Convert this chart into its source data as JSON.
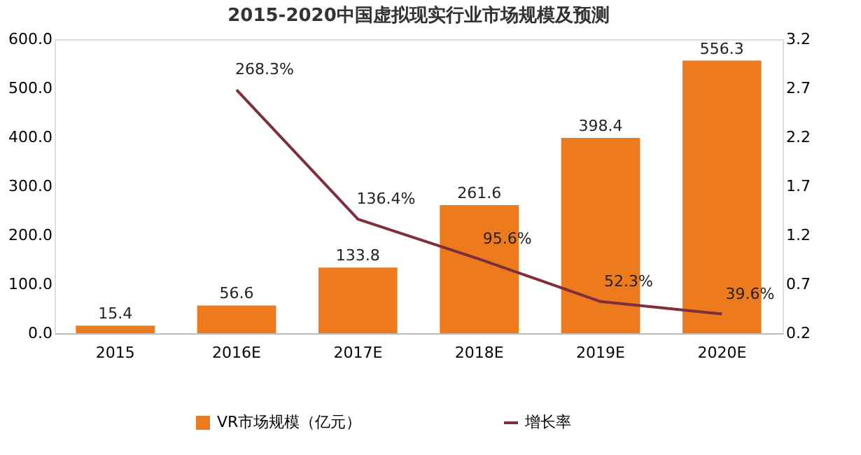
{
  "chart_data": {
    "type": "bar",
    "title": "2015-2020中国虚拟现实行业市场规模及预测",
    "categories": [
      "2015",
      "2016E",
      "2017E",
      "2018E",
      "2019E",
      "2020E"
    ],
    "series": [
      {
        "name": "VR市场规模（亿元）",
        "type": "bar",
        "color": "#ee7a1e",
        "values": [
          15.4,
          56.6,
          133.8,
          261.6,
          398.4,
          556.3
        ]
      },
      {
        "name": "增长率",
        "type": "line",
        "axis": "y2",
        "color": "#7d2f3c",
        "values": [
          null,
          2.683,
          1.364,
          0.956,
          0.523,
          0.396
        ],
        "value_labels": [
          null,
          "268.3%",
          "136.4%",
          "95.6%",
          "52.3%",
          "39.6%"
        ]
      }
    ],
    "data_labels": true,
    "ylim": [
      0,
      600
    ],
    "yticks": [
      {
        "value": 0,
        "label": "0.0"
      },
      {
        "value": 100,
        "label": "100.0"
      },
      {
        "value": 200,
        "label": "200.0"
      },
      {
        "value": 300,
        "label": "300.0"
      },
      {
        "value": 400,
        "label": "400.0"
      },
      {
        "value": 500,
        "label": "500.0"
      },
      {
        "value": 600,
        "label": "600.0"
      }
    ],
    "y2lim": [
      0.2,
      3.2
    ],
    "y2ticks": [
      0.2,
      0.7,
      1.2,
      1.7,
      2.2,
      2.7,
      3.2
    ],
    "legend": "bottom",
    "grid": false,
    "marker": "none",
    "line_style": "solid"
  }
}
